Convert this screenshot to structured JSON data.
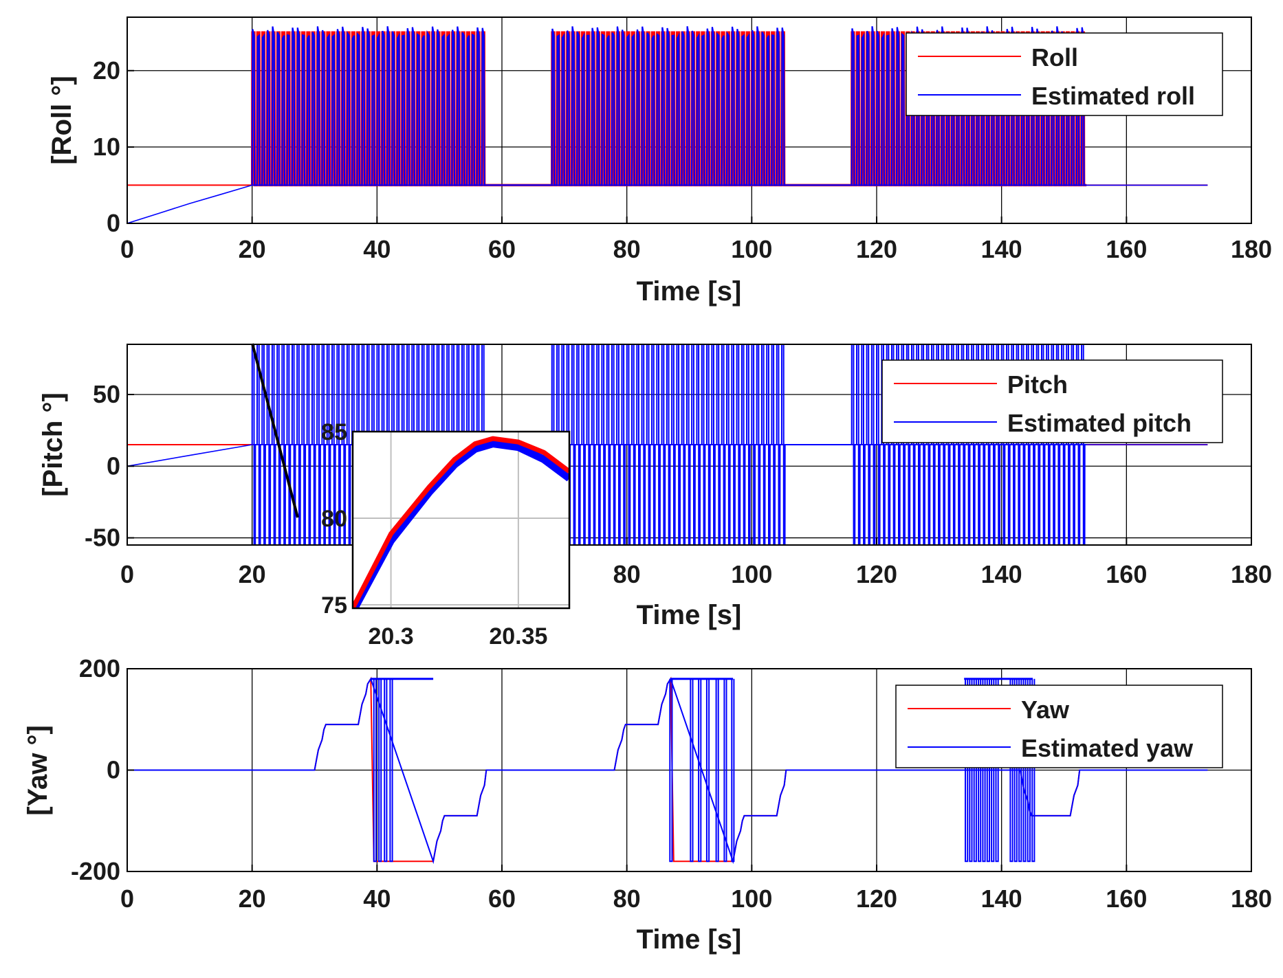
{
  "colors": {
    "truth": "#ff0000",
    "estimate": "#0000ff",
    "axis": "#000000",
    "grid": "#000000",
    "inset_grid": "#bfbfbf",
    "zoom_line": "#000000"
  },
  "chart_data": [
    {
      "id": "roll",
      "type": "line",
      "xlabel": "Time [s]",
      "ylabel": "[Roll °]",
      "xlim": [
        0,
        180
      ],
      "ylim": [
        0,
        27
      ],
      "xticks": [
        0,
        20,
        40,
        60,
        80,
        100,
        120,
        140,
        160,
        180
      ],
      "yticks": [
        0,
        10,
        20
      ],
      "legend": {
        "placement": "top-right",
        "entries": [
          "Roll",
          "Estimated roll"
        ]
      },
      "series": [
        {
          "name": "Roll",
          "baseline": 5,
          "description_points": [
            [
              0,
              5
            ],
            [
              20,
              5
            ],
            [
              173,
              5
            ]
          ]
        },
        {
          "name": "Estimated roll",
          "initial": [
            [
              0,
              0
            ],
            [
              5,
              1.3
            ],
            [
              10,
              2.6
            ],
            [
              15,
              3.8
            ],
            [
              20,
              5
            ]
          ],
          "baseline": 5,
          "peak": 25,
          "end_time": 173
        }
      ],
      "oscillation_segments": [
        {
          "start": 20,
          "end": 57.5,
          "period": 0.8,
          "peak": 25
        },
        {
          "start": 68,
          "end": 105.5,
          "period": 0.8,
          "peak": 25
        },
        {
          "start": 116,
          "end": 153.5,
          "period": 0.8,
          "peak": 25
        }
      ]
    },
    {
      "id": "pitch",
      "type": "line",
      "xlabel": "Time [s]",
      "ylabel": "[Pitch °]",
      "xlim": [
        0,
        180
      ],
      "ylim": [
        -55,
        85
      ],
      "xticks": [
        0,
        20,
        40,
        60,
        80,
        100,
        120,
        140,
        160,
        180
      ],
      "yticks": [
        -50,
        0,
        50
      ],
      "legend": {
        "placement": "top-right",
        "entries": [
          "Pitch",
          "Estimated pitch"
        ]
      },
      "series": [
        {
          "name": "Pitch",
          "baseline": 15
        },
        {
          "name": "Estimated pitch",
          "initial": [
            [
              0,
              0
            ],
            [
              10,
              7.5
            ],
            [
              20,
              15
            ]
          ],
          "baseline": 15,
          "peak": 85,
          "trough": -55,
          "end_time": 173
        }
      ],
      "oscillation_segments": [
        {
          "start": 20,
          "end": 57.5,
          "period": 0.8
        },
        {
          "start": 68,
          "end": 105.5,
          "period": 0.8
        },
        {
          "start": 116,
          "end": 153.5,
          "period": 0.8
        }
      ],
      "inset": {
        "xlim": [
          20.285,
          20.37
        ],
        "ylim": [
          74.8,
          85
        ],
        "xticks": [
          20.3,
          20.35
        ],
        "yticks": [
          75,
          80,
          85
        ],
        "series": [
          {
            "name": "Pitch",
            "x": [
              20.285,
              20.3,
              20.315,
              20.325,
              20.333,
              20.34,
              20.35,
              20.36,
              20.37
            ],
            "y": [
              74.8,
              79.1,
              81.8,
              83.4,
              84.3,
              84.6,
              84.4,
              83.8,
              82.7
            ]
          },
          {
            "name": "Estimated pitch",
            "x": [
              20.285,
              20.3,
              20.315,
              20.325,
              20.333,
              20.34,
              20.35,
              20.36,
              20.37
            ],
            "y": [
              74.6,
              78.7,
              81.5,
              83.1,
              84.0,
              84.3,
              84.1,
              83.4,
              82.3
            ]
          }
        ]
      }
    },
    {
      "id": "yaw",
      "type": "line",
      "xlabel": "Time [s]",
      "ylabel": "[Yaw °]",
      "xlim": [
        0,
        180
      ],
      "ylim": [
        -200,
        200
      ],
      "xticks": [
        0,
        20,
        40,
        60,
        80,
        100,
        120,
        140,
        160,
        180
      ],
      "yticks": [
        -200,
        0,
        200
      ],
      "legend": {
        "placement": "top-right",
        "entries": [
          "Yaw",
          "Estimated yaw"
        ]
      },
      "series": [
        {
          "name": "Yaw",
          "x": [
            0,
            30,
            30.3,
            30.6,
            31.2,
            31.5,
            31.8,
            37,
            37.3,
            37.6,
            38.2,
            38.5,
            39,
            39.5,
            49,
            49.3,
            49.6,
            50.2,
            50.5,
            50.8,
            56,
            56.3,
            56.6,
            57.2,
            57.5,
            78,
            78.3,
            78.6,
            79.2,
            79.5,
            79.8,
            85,
            85.3,
            85.6,
            86.2,
            86.5,
            87,
            87.5,
            97,
            97.3,
            97.6,
            98.2,
            98.5,
            98.8,
            104,
            104.3,
            104.6,
            105.2,
            105.5,
            143,
            143.3,
            143.6,
            144.2,
            144.5,
            144.8,
            151,
            151.3,
            151.6,
            152.2,
            152.5,
            173
          ],
          "y": [
            0,
            0,
            20,
            40,
            60,
            80,
            90,
            90,
            110,
            130,
            150,
            170,
            180,
            -180,
            -180,
            -160,
            -140,
            -120,
            -100,
            -90,
            -90,
            -70,
            -50,
            -30,
            0,
            0,
            20,
            40,
            60,
            80,
            90,
            90,
            110,
            130,
            150,
            170,
            180,
            -180,
            -180,
            -160,
            -140,
            -120,
            -100,
            -90,
            -90,
            -70,
            -50,
            -30,
            0,
            0,
            -20,
            -40,
            -60,
            -80,
            -90,
            -90,
            -70,
            -50,
            -30,
            0,
            0
          ]
        },
        {
          "name": "Estimated yaw",
          "x": [
            0,
            30,
            30.3,
            30.6,
            31.2,
            31.5,
            31.8,
            37,
            37.3,
            37.6,
            38.2,
            38.5,
            39,
            49,
            49.3,
            49.6,
            50.2,
            50.5,
            50.8,
            56,
            56.3,
            56.6,
            57.2,
            57.5,
            78,
            78.3,
            78.6,
            79.2,
            79.5,
            79.8,
            85,
            85.3,
            85.6,
            86.2,
            86.5,
            87,
            97,
            97.3,
            97.6,
            98.2,
            98.5,
            98.8,
            104,
            104.3,
            104.6,
            105.2,
            105.5,
            143,
            143.3,
            143.6,
            144.2,
            144.5,
            144.8,
            151,
            151.3,
            151.6,
            152.2,
            152.5,
            173
          ],
          "y": [
            0,
            0,
            20,
            40,
            60,
            80,
            90,
            90,
            110,
            130,
            150,
            170,
            180,
            -180,
            -160,
            -140,
            -120,
            -100,
            -90,
            -90,
            -70,
            -50,
            -30,
            0,
            0,
            20,
            40,
            60,
            80,
            90,
            90,
            110,
            130,
            150,
            170,
            180,
            -180,
            -160,
            -140,
            -120,
            -100,
            -90,
            -90,
            -70,
            -50,
            -30,
            0,
            0,
            -20,
            -40,
            -60,
            -80,
            -90,
            -90,
            -70,
            -50,
            -30,
            0,
            0
          ]
        }
      ],
      "wrap_spikes": [
        39.5,
        40.3,
        41.2,
        42.1,
        86.9,
        90.2,
        91.5,
        92.8,
        94.3,
        95.6,
        96.8,
        134.2,
        134.9,
        135.6,
        136.3,
        137.0,
        137.7,
        138.4,
        139.1,
        141.4,
        142.1,
        142.8,
        143.5,
        144.2,
        144.9
      ],
      "saturation_band": [
        [
          39,
          49
        ],
        [
          87,
          97
        ],
        [
          134,
          145
        ]
      ]
    }
  ]
}
